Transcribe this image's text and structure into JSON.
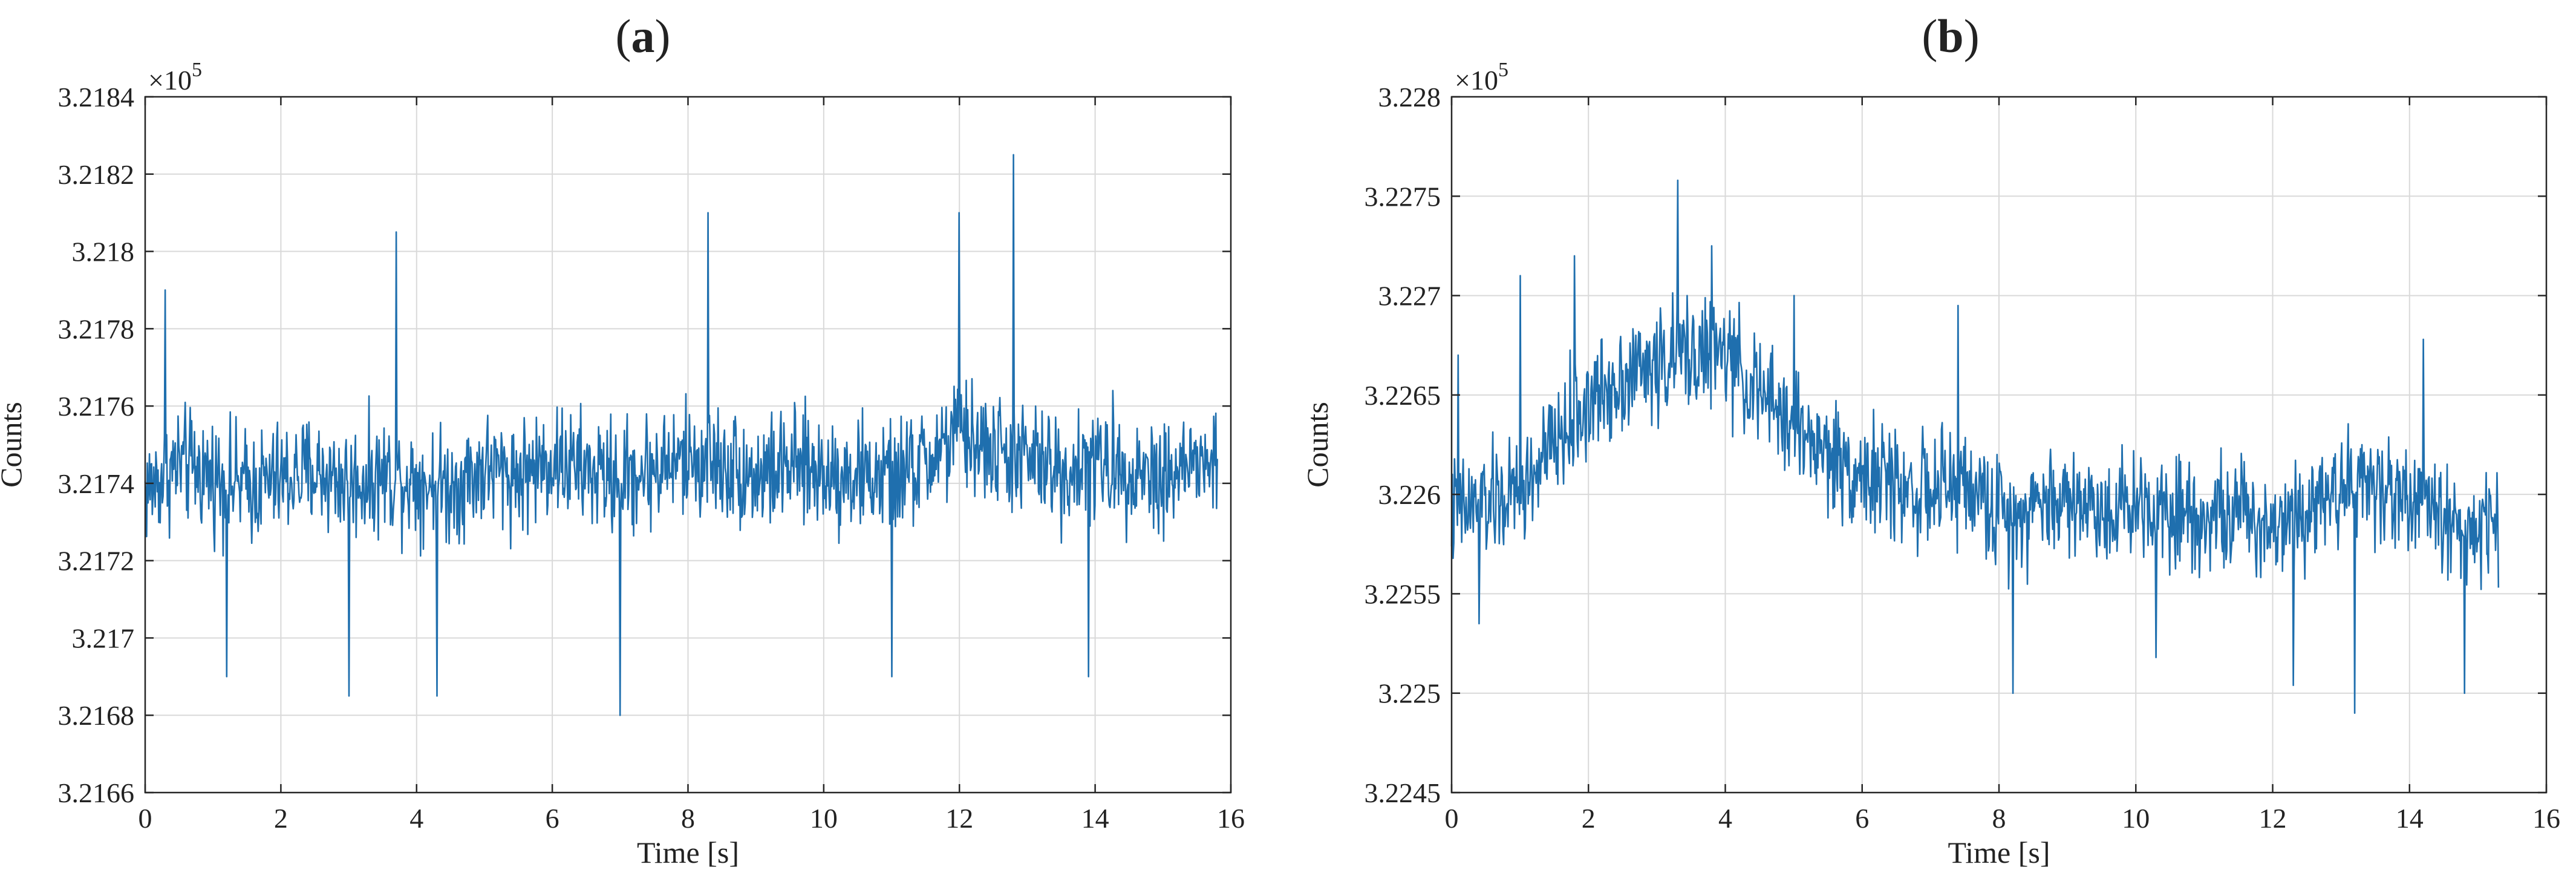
{
  "chart_data": [
    {
      "type": "line",
      "panel": "a",
      "xlabel": "Time [s]",
      "ylabel": "Counts",
      "y_multiplier": "×10",
      "y_multiplier_exp": "5",
      "xlim": [
        0,
        16
      ],
      "ylim": [
        3.2166,
        3.2184
      ],
      "x_ticks": [
        0,
        2,
        4,
        6,
        8,
        10,
        12,
        14,
        16
      ],
      "y_ticks": [
        3.2166,
        3.2168,
        3.217,
        3.2172,
        3.2174,
        3.2176,
        3.2178,
        3.218,
        3.2182,
        3.2184
      ],
      "y_tick_labels": [
        "3.2166",
        "3.2168",
        "3.217",
        "3.2172",
        "3.2174",
        "3.2176",
        "3.2178",
        "3.218",
        "3.2182",
        "3.2184"
      ],
      "grid": true,
      "series": [
        {
          "color": "#1f6fae",
          "x": [
            0,
            0.5,
            1,
            1.5,
            2,
            2.5,
            3,
            3.5,
            4,
            4.5,
            5,
            5.5,
            6,
            6.5,
            7,
            7.5,
            8,
            8.5,
            9,
            9.5,
            10,
            10.5,
            11,
            11.5,
            12,
            12.5,
            13,
            13.5,
            14,
            14.5,
            15,
            15.5,
            15.8
          ],
          "y": [
            3.21738,
            3.21745,
            3.21742,
            3.21739,
            3.21741,
            3.21743,
            3.2174,
            3.21742,
            3.21741,
            3.21739,
            3.21744,
            3.21742,
            3.21746,
            3.21743,
            3.21741,
            3.21744,
            3.21746,
            3.21745,
            3.21742,
            3.21744,
            3.21743,
            3.21742,
            3.21741,
            3.21745,
            3.21753,
            3.21748,
            3.21746,
            3.21743,
            3.21745,
            3.21744,
            3.21742,
            3.21745,
            3.21744
          ],
          "noise": 0.00022,
          "samples": 1500,
          "peaks": [
            [
              0.3,
              3.2179
            ],
            [
              1.2,
              3.2169
            ],
            [
              3.0,
              3.21685
            ],
            [
              3.7,
              3.21805
            ],
            [
              4.3,
              3.21685
            ],
            [
              7.0,
              3.2168
            ],
            [
              8.3,
              3.2181
            ],
            [
              11.0,
              3.2169
            ],
            [
              12.0,
              3.2181
            ],
            [
              12.8,
              3.21825
            ],
            [
              13.9,
              3.2169
            ]
          ]
        }
      ]
    },
    {
      "type": "line",
      "panel": "b",
      "xlabel": "Time [s]",
      "ylabel": "Counts",
      "y_multiplier": "×10",
      "y_multiplier_exp": "5",
      "xlim": [
        0,
        16
      ],
      "ylim": [
        3.2245,
        3.228
      ],
      "x_ticks": [
        0,
        2,
        4,
        6,
        8,
        10,
        12,
        14,
        16
      ],
      "y_ticks": [
        3.2245,
        3.225,
        3.2255,
        3.226,
        3.2265,
        3.227,
        3.2275,
        3.228
      ],
      "y_tick_labels": [
        "3.2245",
        "3.225",
        "3.2255",
        "3.226",
        "3.2265",
        "3.227",
        "3.2275",
        "3.228"
      ],
      "grid": true,
      "series": [
        {
          "color": "#1f6fae",
          "x": [
            0,
            0.5,
            1,
            1.5,
            2,
            2.5,
            3,
            3.5,
            4,
            4.5,
            5,
            5.5,
            6,
            6.5,
            7,
            7.5,
            8,
            8.5,
            9,
            9.5,
            10,
            10.5,
            11,
            11.5,
            12,
            12.5,
            13,
            13.5,
            14,
            14.5,
            15,
            15.3
          ],
          "y": [
            3.2259,
            3.22595,
            3.226,
            3.22625,
            3.22645,
            3.2266,
            3.22665,
            3.22672,
            3.2267,
            3.2265,
            3.22635,
            3.2262,
            3.2261,
            3.22605,
            3.226,
            3.22605,
            3.2259,
            3.22595,
            3.22598,
            3.22592,
            3.22596,
            3.22594,
            3.2259,
            3.2259,
            3.22585,
            3.22595,
            3.22605,
            3.22605,
            3.22598,
            3.22588,
            3.2258,
            3.22585
          ],
          "noise": 0.00042,
          "samples": 1450,
          "peaks": [
            [
              0.1,
              3.2267
            ],
            [
              0.4,
              3.22535
            ],
            [
              1.0,
              3.2271
            ],
            [
              1.8,
              3.2272
            ],
            [
              3.3,
              3.22758
            ],
            [
              3.8,
              3.22725
            ],
            [
              5.0,
              3.227
            ],
            [
              7.4,
              3.22695
            ],
            [
              8.2,
              3.225
            ],
            [
              10.3,
              3.22518
            ],
            [
              12.3,
              3.22504
            ],
            [
              13.2,
              3.2249
            ],
            [
              14.2,
              3.22678
            ],
            [
              14.8,
              3.225
            ]
          ]
        }
      ]
    }
  ],
  "panel_labels": [
    {
      "open": "(",
      "letter": "a",
      "close": ")"
    },
    {
      "open": "(",
      "letter": "b",
      "close": ")"
    }
  ]
}
